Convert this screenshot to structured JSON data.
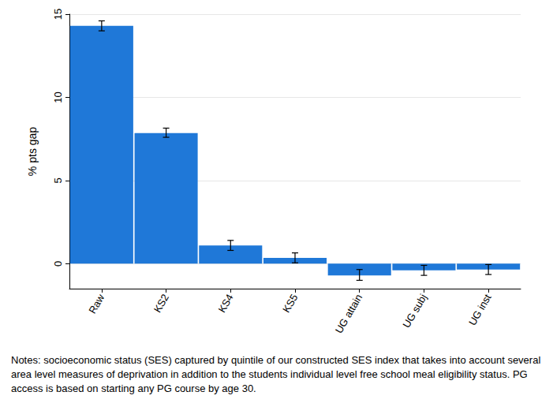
{
  "chart_data": {
    "type": "bar",
    "y_label": "% pts gap",
    "categories": [
      "Raw",
      "KS2",
      "KS4",
      "KS5",
      "UG attain",
      "UG subj",
      "UG inst"
    ],
    "values": [
      14.3,
      7.85,
      1.1,
      0.35,
      -0.7,
      -0.4,
      -0.35
    ],
    "error_bars": [
      [
        14.0,
        14.6
      ],
      [
        7.6,
        8.15
      ],
      [
        0.8,
        1.4
      ],
      [
        0.05,
        0.65
      ],
      [
        -1.0,
        -0.35
      ],
      [
        -0.7,
        -0.1
      ],
      [
        -0.65,
        -0.05
      ]
    ],
    "color": "#1f78d8",
    "ylim": [
      -1.5,
      15
    ],
    "yticks": [
      0,
      5,
      10,
      15
    ],
    "grid": true,
    "notes": "Notes: socioeconomic status (SES) captured by quintile of our constructed SES index that takes into account several area level measures of deprivation in addition to the students individual level free school meal eligibility status. PG access is based on starting any PG course by age 30."
  }
}
